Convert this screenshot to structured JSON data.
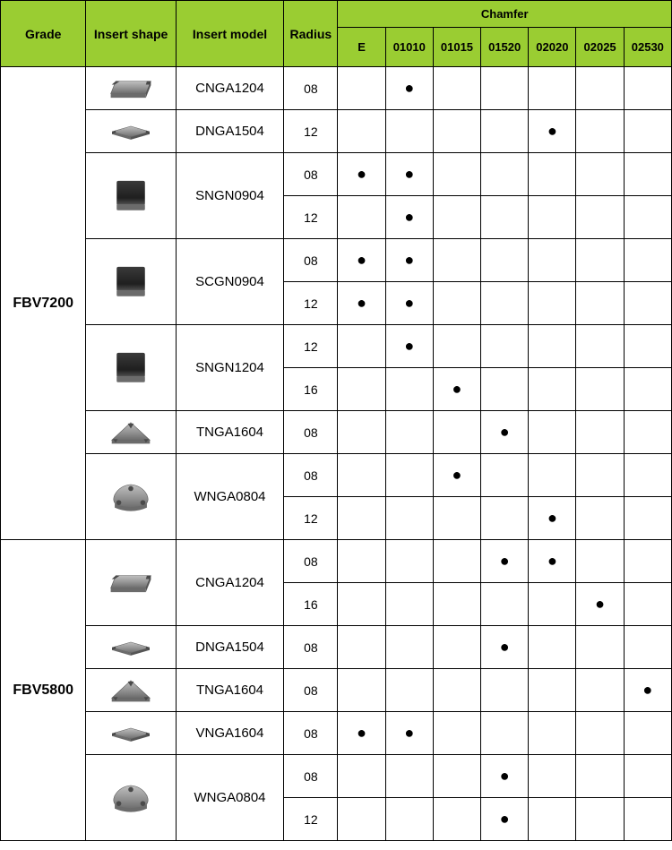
{
  "headers": {
    "grade": "Grade",
    "shape": "Insert shape",
    "model": "Insert model",
    "radius": "Radius",
    "chamfer": "Chamfer",
    "chamfer_cols": [
      "E",
      "01010",
      "01015",
      "01520",
      "02020",
      "02025",
      "02530"
    ]
  },
  "colors": {
    "header_bg": "#9acd32",
    "border": "#000000",
    "dot": "#000000",
    "insert_grey_light": "#9e9e9e",
    "insert_grey_dark": "#6b6b6b",
    "insert_black": "#2b2b2b",
    "insert_edge": "#4a4a4a"
  },
  "grades": [
    {
      "name": "FBV7200",
      "row_span": 11,
      "models": [
        {
          "shape": "rhombus-grey",
          "model": "CNGA1204",
          "rows": [
            {
              "radius": "08",
              "marks": [
                "",
                "●",
                "",
                "",
                "",
                "",
                ""
              ]
            }
          ]
        },
        {
          "shape": "diamond-grey",
          "model": "DNGA1504",
          "rows": [
            {
              "radius": "12",
              "marks": [
                "",
                "",
                "",
                "",
                "●",
                "",
                ""
              ]
            }
          ]
        },
        {
          "shape": "square-black",
          "model": "SNGN0904",
          "rows": [
            {
              "radius": "08",
              "marks": [
                "●",
                "●",
                "",
                "",
                "",
                "",
                ""
              ]
            },
            {
              "radius": "12",
              "marks": [
                "",
                "●",
                "",
                "",
                "",
                "",
                ""
              ]
            }
          ]
        },
        {
          "shape": "square-black",
          "model": "SCGN0904",
          "rows": [
            {
              "radius": "08",
              "marks": [
                "●",
                "●",
                "",
                "",
                "",
                "",
                ""
              ]
            },
            {
              "radius": "12",
              "marks": [
                "●",
                "●",
                "",
                "",
                "",
                "",
                ""
              ]
            }
          ]
        },
        {
          "shape": "square-black",
          "model": "SNGN1204",
          "rows": [
            {
              "radius": "12",
              "marks": [
                "",
                "●",
                "",
                "",
                "",
                "",
                ""
              ]
            },
            {
              "radius": "16",
              "marks": [
                "",
                "",
                "●",
                "",
                "",
                "",
                ""
              ]
            }
          ]
        },
        {
          "shape": "triangle-grey",
          "model": "TNGA1604",
          "rows": [
            {
              "radius": "08",
              "marks": [
                "",
                "",
                "",
                "●",
                "",
                "",
                ""
              ]
            }
          ]
        },
        {
          "shape": "trigon-grey",
          "model": "WNGA0804",
          "rows": [
            {
              "radius": "08",
              "marks": [
                "",
                "",
                "●",
                "",
                "",
                "",
                ""
              ]
            },
            {
              "radius": "12",
              "marks": [
                "",
                "",
                "",
                "",
                "●",
                "",
                ""
              ]
            }
          ]
        }
      ]
    },
    {
      "name": "FBV5800",
      "row_span": 7,
      "models": [
        {
          "shape": "rhombus-grey",
          "model": "CNGA1204",
          "rows": [
            {
              "radius": "08",
              "marks": [
                "",
                "",
                "",
                "●",
                "●",
                "",
                ""
              ]
            },
            {
              "radius": "16",
              "marks": [
                "",
                "",
                "",
                "",
                "",
                "●",
                ""
              ]
            }
          ]
        },
        {
          "shape": "diamond-grey",
          "model": "DNGA1504",
          "rows": [
            {
              "radius": "08",
              "marks": [
                "",
                "",
                "",
                "●",
                "",
                "",
                ""
              ]
            }
          ]
        },
        {
          "shape": "triangle-grey",
          "model": "TNGA1604",
          "rows": [
            {
              "radius": "08",
              "marks": [
                "",
                "",
                "",
                "",
                "",
                "",
                "●"
              ]
            }
          ]
        },
        {
          "shape": "diamond-grey",
          "model": "VNGA1604",
          "rows": [
            {
              "radius": "08",
              "marks": [
                "●",
                "●",
                "",
                "",
                "",
                "",
                ""
              ]
            }
          ]
        },
        {
          "shape": "trigon-grey",
          "model": "WNGA0804",
          "rows": [
            {
              "radius": "08",
              "marks": [
                "",
                "",
                "",
                "●",
                "",
                "",
                ""
              ]
            },
            {
              "radius": "12",
              "marks": [
                "",
                "",
                "",
                "●",
                "",
                "",
                ""
              ]
            }
          ]
        }
      ]
    }
  ]
}
